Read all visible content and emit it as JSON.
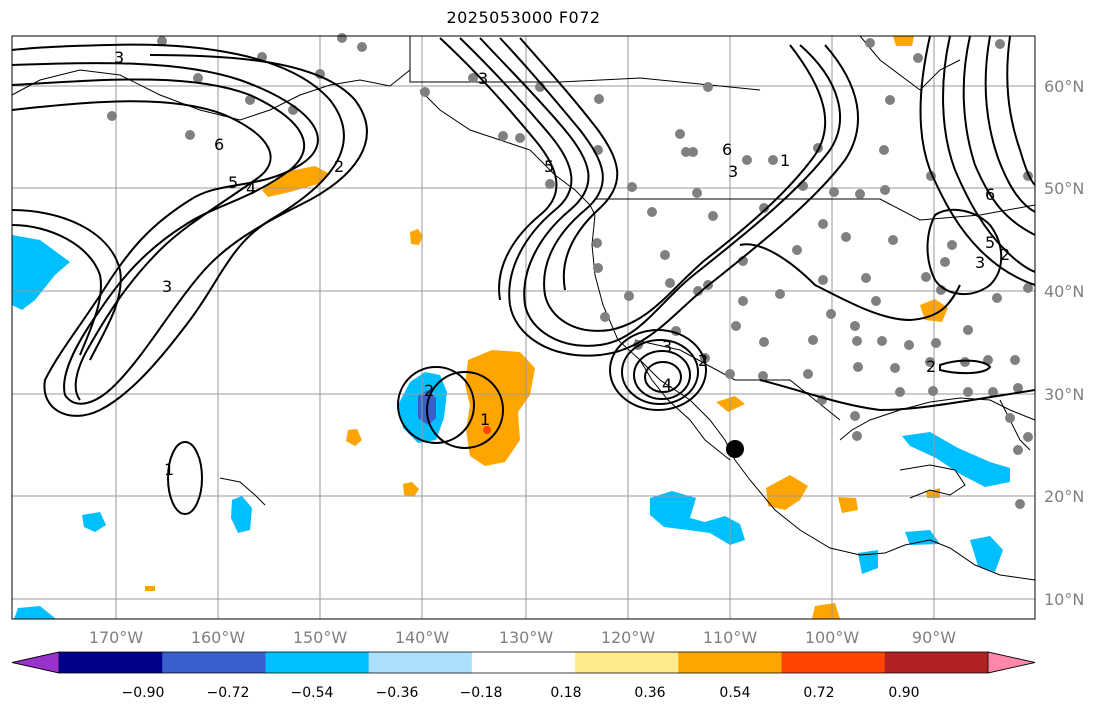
{
  "title": "2025053000 F072",
  "longitude_labels": [
    "170°W",
    "160°W",
    "150°W",
    "140°W",
    "130°W",
    "120°W",
    "110°W",
    "100°W",
    "90°W"
  ],
  "latitude_labels": [
    "60°N",
    "50°N",
    "40°N",
    "30°N",
    "20°N",
    "10°N"
  ],
  "colorbar": {
    "ticks": [
      "−0.90",
      "−0.72",
      "−0.54",
      "−0.36",
      "−0.18",
      "0.18",
      "0.36",
      "0.54",
      "0.72",
      "0.90"
    ],
    "colors": [
      "#9932CC",
      "#00008B",
      "#3A5FCD",
      "#00BFFF",
      "#ADDFFF",
      "#FFFFFF",
      "#FFEB8A",
      "#FFA500",
      "#FF4500",
      "#B22222",
      "#FF88AA"
    ],
    "extend": "both"
  },
  "contour_labels": [
    "3",
    "6",
    "5",
    "4",
    "2",
    "3",
    "3",
    "5",
    "6",
    "3",
    "1",
    "2",
    "3",
    "4",
    "2",
    "1",
    "1",
    "2",
    "3",
    "5",
    "6",
    "2"
  ],
  "colors": {
    "contour": "#000000",
    "grid": "#9a9a9a",
    "station_dot": "#808080",
    "coast": "#000000"
  }
}
